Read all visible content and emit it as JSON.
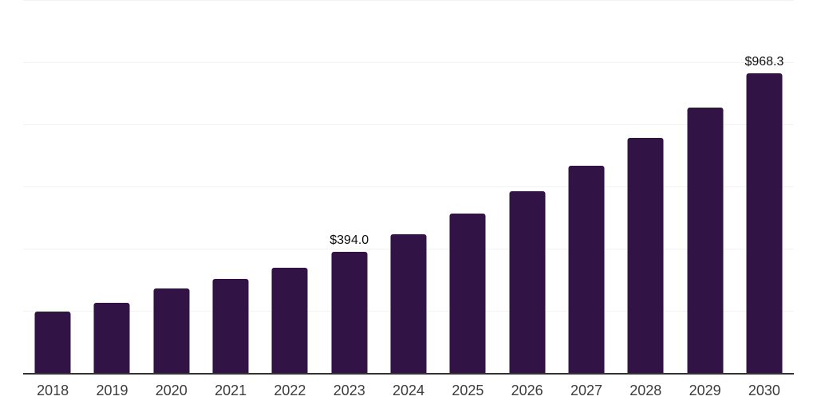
{
  "chart_data": {
    "type": "bar",
    "title": "",
    "xlabel": "",
    "ylabel": "",
    "categories": [
      "2018",
      "2019",
      "2020",
      "2021",
      "2022",
      "2023",
      "2024",
      "2025",
      "2026",
      "2027",
      "2028",
      "2029",
      "2030"
    ],
    "values": [
      203,
      231,
      277,
      308,
      344,
      394.0,
      451,
      517,
      590,
      671,
      761,
      858,
      968.3
    ],
    "data_labels": {
      "2023": "$394.0",
      "2030": "$968.3"
    },
    "ylim": [
      0,
      1200
    ],
    "gridline_step": 200,
    "grid": "horizontal-only",
    "legend": "none",
    "colors": {
      "bar": "#321345",
      "axis_line": "#333333",
      "gridline": "#f2f2f2",
      "value_label": "#0d0d0d",
      "tick_label": "#3d3d3d",
      "background": "#ffffff"
    }
  }
}
